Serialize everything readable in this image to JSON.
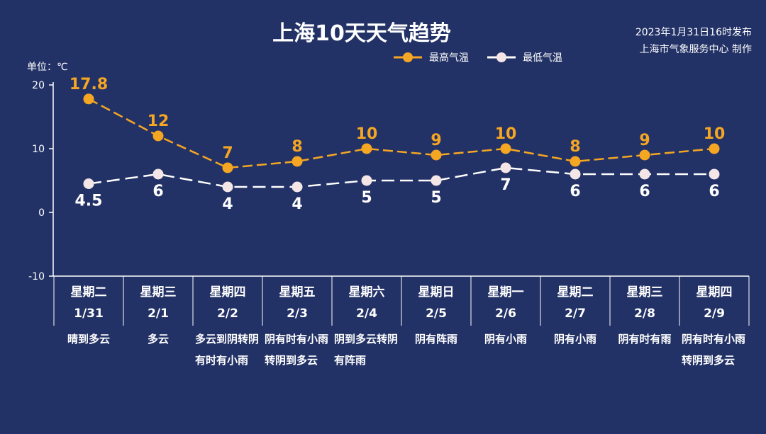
{
  "header": {
    "title": "上海10天天气趋势",
    "issue_time": "2023年1月31日16时发布",
    "issuer": "上海市气象服务中心 制作"
  },
  "unit_label": "单位：℃",
  "colors": {
    "background": "#233266",
    "high": "#f5a623",
    "low": "#ffffff",
    "axis": "#ffffff"
  },
  "chart_data": {
    "type": "line",
    "title": "上海10天天气趋势",
    "ylabel": "单位：℃",
    "ylim": [
      -10,
      20
    ],
    "yticks": [
      "20",
      "10",
      "0",
      "-10"
    ],
    "categories": [
      {
        "weekday": "星期二",
        "date": "1/31",
        "weather": "晴到多云"
      },
      {
        "weekday": "星期三",
        "date": "2/1",
        "weather": "多云"
      },
      {
        "weekday": "星期四",
        "date": "2/2",
        "weather": "多云到阴转阴有时有小雨"
      },
      {
        "weekday": "星期五",
        "date": "2/3",
        "weather": "阴有时有小雨转阴到多云"
      },
      {
        "weekday": "星期六",
        "date": "2/4",
        "weather": "阴到多云转阴有阵雨"
      },
      {
        "weekday": "星期日",
        "date": "2/5",
        "weather": "阴有阵雨"
      },
      {
        "weekday": "星期一",
        "date": "2/6",
        "weather": "阴有小雨"
      },
      {
        "weekday": "星期二",
        "date": "2/7",
        "weather": "阴有小雨"
      },
      {
        "weekday": "星期三",
        "date": "2/8",
        "weather": "阴有时有雨"
      },
      {
        "weekday": "星期四",
        "date": "2/9",
        "weather": "阴有时有小雨转阴到多云"
      }
    ],
    "series": [
      {
        "name": "最高气温",
        "color": "#f5a623",
        "values": [
          17.8,
          12,
          7,
          8,
          10,
          9,
          10,
          8,
          9,
          10
        ],
        "labels": [
          "17.8",
          "12",
          "7",
          "8",
          "10",
          "9",
          "10",
          "8",
          "9",
          "10"
        ]
      },
      {
        "name": "最低气温",
        "color": "#ffffff",
        "values": [
          4.5,
          6,
          4,
          4,
          5,
          5,
          7,
          6,
          6,
          6
        ],
        "labels": [
          "4.5",
          "6",
          "4",
          "4",
          "5",
          "5",
          "7",
          "6",
          "6",
          "6"
        ]
      }
    ],
    "grid": false,
    "legend": "top-center"
  }
}
